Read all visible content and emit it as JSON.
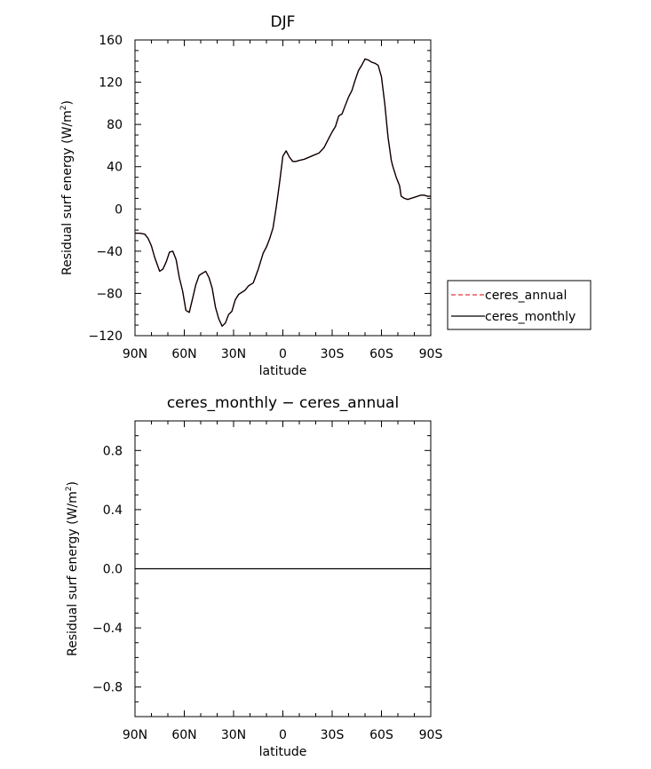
{
  "charts": [
    {
      "type": "line",
      "title": "DJF",
      "xlabel": "latitude",
      "ylabel": "Residual surf energy (W/m",
      "ylabel_sup": "2",
      "ylabel_close": ")",
      "xlim": [
        90,
        -90
      ],
      "ylim": [
        -120,
        160
      ],
      "x_ticks": [
        90,
        60,
        30,
        0,
        -30,
        -60,
        -90
      ],
      "x_tick_labels": [
        "90N",
        "60N",
        "30N",
        "0",
        "30S",
        "60S",
        "90S"
      ],
      "y_ticks": [
        -120,
        -80,
        -40,
        0,
        40,
        80,
        120,
        160
      ],
      "y_tick_labels": [
        "−120",
        "−80",
        "−40",
        "0",
        "40",
        "80",
        "120",
        "160"
      ],
      "grid": false,
      "legend_position": "right",
      "legend": [
        {
          "label": "ceres_annual",
          "color": "#e8353b",
          "dash": "dashed"
        },
        {
          "label": "ceres_monthly",
          "color": "#000000",
          "dash": "solid"
        }
      ],
      "series": [
        {
          "name": "ceres_annual",
          "color": "#e8353b",
          "x": [
            90,
            87,
            84,
            82,
            80,
            78,
            75,
            73,
            71,
            69,
            67,
            65,
            63,
            61,
            59,
            57,
            55,
            53,
            51,
            49,
            47,
            45,
            43,
            41,
            39,
            37,
            35,
            33,
            31,
            29,
            27,
            25,
            23,
            21,
            18,
            15,
            12,
            10,
            8,
            6,
            4,
            2,
            0,
            -2,
            -4,
            -6,
            -8,
            -10,
            -13,
            -16,
            -19,
            -22,
            -25,
            -28,
            -30,
            -32,
            -34,
            -36,
            -38,
            -40,
            -42,
            -44,
            -46,
            -48,
            -50,
            -52,
            -54,
            -56,
            -58,
            -60,
            -62,
            -64,
            -66,
            -67,
            -68,
            -69,
            -70,
            -71,
            -72,
            -74,
            -76,
            -78,
            -80,
            -82,
            -84,
            -86,
            -88,
            -90
          ],
          "y": [
            -23,
            -23,
            -24,
            -28,
            -35,
            -46,
            -59,
            -57,
            -50,
            -41,
            -40,
            -48,
            -65,
            -78,
            -96,
            -98,
            -85,
            -72,
            -63,
            -61,
            -59,
            -65,
            -75,
            -93,
            -104,
            -111,
            -108,
            -100,
            -97,
            -86,
            -81,
            -79,
            -77,
            -73,
            -70,
            -57,
            -42,
            -36,
            -28,
            -18,
            2,
            25,
            50,
            55,
            49,
            45,
            45,
            46,
            47,
            49,
            51,
            53,
            58,
            67,
            73,
            78,
            88,
            90,
            98,
            106,
            112,
            122,
            131,
            136,
            142,
            141,
            139,
            138,
            136,
            125,
            100,
            68,
            46,
            40,
            35,
            30,
            26,
            22,
            12,
            10,
            9,
            10,
            11,
            12,
            13,
            13,
            12,
            12
          ]
        },
        {
          "name": "ceres_monthly",
          "color": "#000000",
          "x": [
            90,
            87,
            84,
            82,
            80,
            78,
            75,
            73,
            71,
            69,
            67,
            65,
            63,
            61,
            59,
            57,
            55,
            53,
            51,
            49,
            47,
            45,
            43,
            41,
            39,
            37,
            35,
            33,
            31,
            29,
            27,
            25,
            23,
            21,
            18,
            15,
            12,
            10,
            8,
            6,
            4,
            2,
            0,
            -2,
            -4,
            -6,
            -8,
            -10,
            -13,
            -16,
            -19,
            -22,
            -25,
            -28,
            -30,
            -32,
            -34,
            -36,
            -38,
            -40,
            -42,
            -44,
            -46,
            -48,
            -50,
            -52,
            -54,
            -56,
            -58,
            -60,
            -62,
            -64,
            -66,
            -67,
            -68,
            -69,
            -70,
            -71,
            -72,
            -74,
            -76,
            -78,
            -80,
            -82,
            -84,
            -86,
            -88,
            -90
          ],
          "y": [
            -23,
            -23,
            -24,
            -28,
            -35,
            -46,
            -59,
            -57,
            -50,
            -41,
            -40,
            -48,
            -65,
            -78,
            -96,
            -98,
            -85,
            -72,
            -63,
            -61,
            -59,
            -65,
            -75,
            -93,
            -104,
            -111,
            -108,
            -100,
            -97,
            -86,
            -81,
            -79,
            -77,
            -73,
            -70,
            -57,
            -42,
            -36,
            -28,
            -18,
            2,
            25,
            50,
            55,
            49,
            45,
            45,
            46,
            47,
            49,
            51,
            53,
            58,
            67,
            73,
            78,
            88,
            90,
            98,
            106,
            112,
            122,
            131,
            136,
            142,
            141,
            139,
            138,
            136,
            125,
            100,
            68,
            46,
            40,
            35,
            30,
            26,
            22,
            12,
            10,
            9,
            10,
            11,
            12,
            13,
            13,
            12,
            12
          ]
        }
      ]
    },
    {
      "type": "line",
      "title": "ceres_monthly − ceres_annual",
      "xlabel": "latitude",
      "ylabel": "Residual surf energy (W/m",
      "ylabel_sup": "2",
      "ylabel_close": ")",
      "xlim": [
        90,
        -90
      ],
      "ylim": [
        -1,
        1
      ],
      "x_ticks": [
        90,
        60,
        30,
        0,
        -30,
        -60,
        -90
      ],
      "x_tick_labels": [
        "90N",
        "60N",
        "30N",
        "0",
        "30S",
        "60S",
        "90S"
      ],
      "y_ticks": [
        -0.8,
        -0.4,
        0,
        0.4,
        0.8
      ],
      "y_tick_labels": [
        "−0.8",
        "−0.4",
        "0.0",
        "0.4",
        "0.8"
      ],
      "grid": false,
      "series": [
        {
          "name": "ceres_monthly − ceres_annual",
          "color": "#000000",
          "x": [
            90,
            -90
          ],
          "y": [
            0,
            0
          ]
        }
      ]
    }
  ]
}
